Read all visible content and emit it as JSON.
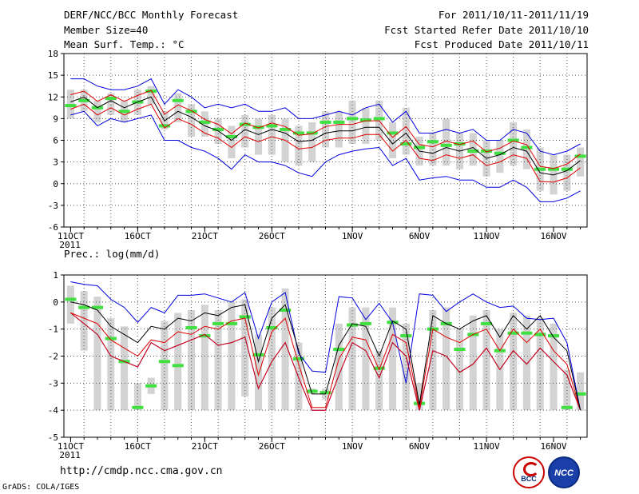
{
  "header": {
    "title": "DERF/NCC/BCC Monthly Forecast",
    "member_size": "Member Size=40",
    "variable": "Mean Surf. Temp.: °C",
    "period": "For 2011/10/11-2011/11/19",
    "refer_date": "Fcst Started Refer Date 2011/10/10",
    "produced_date": "Fcst Produced Date 2011/10/11"
  },
  "footer": {
    "url": "http://cmdp.ncc.cma.gov.cn",
    "credit": "GrADS: COLA/IGES",
    "logo_bcc": "BCC",
    "logo_ncc": "NCC"
  },
  "colors": {
    "ensemble_box": "#d3d3d3",
    "median_bar": "#40e040",
    "mean_line": "#000000",
    "inner_bound": "#e00000",
    "outer_bound": "#0000e0",
    "background": "#ffffff"
  },
  "chart_data": [
    {
      "type": "box-ensemble-line",
      "title": "Mean Surf. Temp.: °C",
      "ylabel": "°C",
      "ylim": [
        -6,
        18
      ],
      "yticks": [
        -6,
        -3,
        0,
        3,
        6,
        9,
        12,
        15,
        18
      ],
      "xlim": [
        0.5,
        39.5
      ],
      "xticks": [
        {
          "day": 1,
          "label": "11OCT"
        },
        {
          "day": 6,
          "label": "16OCT"
        },
        {
          "day": 11,
          "label": "21OCT"
        },
        {
          "day": 16,
          "label": "26OCT"
        },
        {
          "day": 22,
          "label": "1NOV"
        },
        {
          "day": 27,
          "label": "6NOV"
        },
        {
          "day": 32,
          "label": "11NOV"
        },
        {
          "day": 37,
          "label": "16NOV"
        }
      ],
      "year_label": "2011",
      "grid": true,
      "days": [
        1,
        2,
        3,
        4,
        5,
        6,
        7,
        8,
        9,
        10,
        11,
        12,
        13,
        14,
        15,
        16,
        17,
        18,
        19,
        20,
        21,
        22,
        23,
        24,
        25,
        26,
        27,
        28,
        29,
        30,
        31,
        32,
        33,
        34,
        35,
        36,
        37,
        38,
        39
      ],
      "ensemble_mean": [
        11.3,
        12.0,
        10.5,
        11.5,
        10.5,
        11.3,
        12.0,
        8.7,
        10.0,
        9.2,
        8.0,
        7.3,
        6.0,
        7.5,
        6.8,
        7.5,
        7.0,
        5.8,
        6.0,
        7.0,
        7.3,
        7.3,
        7.8,
        7.8,
        5.5,
        7.0,
        4.5,
        4.2,
        5.0,
        4.5,
        5.0,
        3.5,
        4.0,
        5.0,
        4.5,
        1.5,
        1.2,
        1.8,
        3.2
      ],
      "inner_upper": [
        12.3,
        12.8,
        11.4,
        12.3,
        11.4,
        12.2,
        12.9,
        9.6,
        10.9,
        10.1,
        8.9,
        8.2,
        6.9,
        8.4,
        7.7,
        8.4,
        7.9,
        6.7,
        6.9,
        7.9,
        8.2,
        8.2,
        8.7,
        8.7,
        6.4,
        7.9,
        5.4,
        5.1,
        5.9,
        5.4,
        5.9,
        4.4,
        4.9,
        5.9,
        5.4,
        2.4,
        2.1,
        2.7,
        4.1
      ],
      "inner_lower": [
        10.3,
        11.0,
        9.5,
        10.5,
        9.5,
        10.3,
        11.0,
        7.7,
        9.0,
        8.2,
        7.0,
        6.3,
        5.0,
        6.5,
        5.8,
        6.5,
        6.0,
        4.8,
        5.0,
        6.0,
        6.3,
        6.3,
        6.8,
        6.8,
        4.5,
        6.0,
        3.5,
        3.2,
        4.0,
        3.5,
        4.0,
        2.5,
        3.0,
        4.0,
        3.5,
        0.3,
        0.2,
        0.8,
        2.2
      ],
      "outer_upper": [
        14.5,
        14.5,
        13.5,
        13.0,
        13.0,
        13.5,
        14.5,
        11.0,
        13.0,
        12.0,
        10.5,
        11.0,
        10.5,
        11.0,
        10.0,
        10.0,
        10.5,
        9.0,
        9.0,
        9.5,
        10.0,
        9.5,
        10.5,
        11.0,
        8.5,
        10.0,
        7.0,
        7.0,
        7.5,
        7.0,
        7.5,
        6.0,
        6.0,
        7.5,
        7.0,
        4.5,
        4.0,
        4.5,
        5.5
      ],
      "outer_lower": [
        9.5,
        10.0,
        8.0,
        9.0,
        8.5,
        9.0,
        9.5,
        6.0,
        6.0,
        5.0,
        4.5,
        3.5,
        2.0,
        4.0,
        3.0,
        3.0,
        2.5,
        1.5,
        1.0,
        3.0,
        4.0,
        4.5,
        4.8,
        5.0,
        2.5,
        3.5,
        0.5,
        0.8,
        1.0,
        0.5,
        0.5,
        -0.5,
        -0.5,
        0.5,
        -0.5,
        -2.5,
        -2.5,
        -2.0,
        -1.0
      ],
      "median": [
        10.8,
        11.5,
        10.5,
        11.8,
        10.0,
        11.3,
        12.8,
        8.0,
        11.5,
        10.0,
        8.5,
        7.5,
        6.5,
        8.2,
        7.8,
        8.0,
        7.5,
        7.0,
        7.0,
        8.5,
        8.5,
        9.0,
        8.8,
        9.0,
        7.0,
        5.5,
        5.0,
        5.8,
        5.3,
        5.5,
        4.5,
        4.5,
        4.2,
        6.0,
        5.0,
        2.0,
        2.0,
        2.0,
        3.8
      ],
      "box_upper": [
        13.0,
        13.0,
        11.5,
        12.5,
        11.5,
        13.0,
        13.5,
        10.0,
        12.5,
        11.0,
        10.0,
        9.0,
        8.0,
        9.5,
        9.0,
        9.5,
        9.0,
        8.0,
        8.5,
        10.0,
        10.0,
        11.5,
        10.5,
        11.5,
        8.5,
        10.5,
        6.5,
        7.0,
        9.0,
        7.0,
        7.0,
        6.0,
        6.0,
        8.5,
        7.5,
        5.0,
        4.0,
        4.0,
        5.0
      ],
      "box_lower": [
        9.0,
        10.0,
        8.5,
        9.5,
        8.5,
        9.5,
        11.0,
        7.5,
        8.5,
        6.5,
        6.5,
        5.5,
        3.5,
        5.0,
        4.0,
        4.0,
        3.0,
        2.5,
        3.0,
        5.0,
        5.0,
        5.5,
        5.5,
        6.0,
        3.5,
        4.0,
        2.5,
        2.5,
        2.5,
        2.0,
        2.5,
        1.0,
        1.5,
        2.5,
        2.0,
        -1.0,
        -1.5,
        -1.0,
        1.0
      ]
    },
    {
      "type": "box-ensemble-line",
      "title": "Prec.: log(mm/d)",
      "ylabel": "log(mm/d)",
      "ylim": [
        -5,
        1
      ],
      "yticks": [
        -5,
        -4,
        -3,
        -2,
        -1,
        0,
        1
      ],
      "xlim": [
        0.5,
        39.5
      ],
      "xticks": [
        {
          "day": 1,
          "label": "11OCT"
        },
        {
          "day": 6,
          "label": "16OCT"
        },
        {
          "day": 11,
          "label": "21OCT"
        },
        {
          "day": 16,
          "label": "26OCT"
        },
        {
          "day": 22,
          "label": "1NOV"
        },
        {
          "day": 27,
          "label": "6NOV"
        },
        {
          "day": 32,
          "label": "11NOV"
        },
        {
          "day": 37,
          "label": "16NOV"
        }
      ],
      "year_label": "2011",
      "grid": true,
      "days": [
        1,
        2,
        3,
        4,
        5,
        6,
        7,
        8,
        9,
        10,
        11,
        12,
        13,
        14,
        15,
        16,
        17,
        18,
        19,
        20,
        21,
        22,
        23,
        24,
        25,
        26,
        27,
        28,
        29,
        30,
        31,
        32,
        33,
        34,
        35,
        36,
        37,
        38,
        39
      ],
      "ensemble_mean": [
        0.0,
        -0.1,
        -0.3,
        -0.9,
        -1.2,
        -1.5,
        -0.9,
        -1.0,
        -0.6,
        -0.7,
        -0.4,
        -0.5,
        -0.2,
        -0.1,
        -2.2,
        -0.6,
        -0.1,
        -1.8,
        -3.4,
        -3.4,
        -1.6,
        -0.8,
        -0.9,
        -2.0,
        -0.7,
        -1.0,
        -3.8,
        -0.5,
        -0.8,
        -1.0,
        -0.7,
        -0.5,
        -1.3,
        -0.5,
        -1.0,
        -0.5,
        -1.3,
        -1.8,
        -4.0
      ],
      "inner_upper": [
        -0.4,
        -0.6,
        -0.8,
        -1.4,
        -1.7,
        -2.0,
        -1.4,
        -1.5,
        -1.1,
        -1.2,
        -0.9,
        -1.0,
        -0.7,
        -0.6,
        -2.7,
        -1.1,
        -0.6,
        -2.3,
        -3.9,
        -3.9,
        -2.1,
        -1.3,
        -1.4,
        -2.5,
        -1.2,
        -1.5,
        -3.9,
        -1.0,
        -1.3,
        -1.5,
        -1.2,
        -1.0,
        -1.8,
        -1.0,
        -1.5,
        -1.0,
        -1.8,
        -2.3,
        -4.0
      ],
      "inner_lower": [
        -0.4,
        -0.8,
        -1.2,
        -2.0,
        -2.2,
        -2.4,
        -1.5,
        -1.8,
        -1.6,
        -1.4,
        -1.2,
        -1.6,
        -1.5,
        -1.3,
        -3.2,
        -2.2,
        -1.5,
        -2.8,
        -4.0,
        -4.0,
        -2.7,
        -1.5,
        -1.8,
        -2.8,
        -1.5,
        -2.0,
        -4.0,
        -1.8,
        -2.0,
        -2.6,
        -2.3,
        -1.7,
        -2.5,
        -1.8,
        -2.3,
        -1.7,
        -2.2,
        -2.7,
        -4.0
      ],
      "outer_upper": [
        0.75,
        0.65,
        0.6,
        0.1,
        -0.2,
        -0.75,
        -0.2,
        -0.4,
        0.25,
        0.25,
        0.3,
        0.15,
        0.0,
        0.35,
        -1.35,
        0.0,
        0.35,
        -1.9,
        -2.55,
        -2.6,
        0.2,
        0.15,
        -0.65,
        -0.05,
        -0.75,
        -3.0,
        0.3,
        0.25,
        -0.35,
        0.0,
        0.3,
        0.0,
        -0.2,
        -0.15,
        -0.6,
        -0.65,
        -0.6,
        -1.5,
        -4.0
      ],
      "outer_lower": [
        -0.4,
        -0.8,
        -1.2,
        -2.0,
        -2.2,
        -2.4,
        -1.5,
        -1.8,
        -1.6,
        -1.4,
        -1.2,
        -1.6,
        -1.5,
        -1.3,
        -3.2,
        -2.2,
        -1.5,
        -2.8,
        -4.0,
        -4.0,
        -2.7,
        -1.5,
        -1.8,
        -2.8,
        -1.5,
        -2.0,
        -4.0,
        -1.8,
        -2.0,
        -2.6,
        -2.3,
        -1.7,
        -2.5,
        -1.8,
        -2.3,
        -1.7,
        -2.2,
        -2.7,
        -4.0
      ],
      "median": [
        0.1,
        -0.2,
        -0.2,
        -1.35,
        -2.2,
        -3.9,
        -3.1,
        -2.2,
        -2.35,
        -0.95,
        -1.25,
        -0.8,
        -0.8,
        -0.55,
        -1.95,
        -0.95,
        -0.3,
        -2.1,
        -3.3,
        -3.35,
        -1.75,
        -0.85,
        -0.8,
        -2.45,
        -0.75,
        -1.25,
        -3.75,
        -1.0,
        -0.8,
        -1.75,
        -1.2,
        -0.8,
        -1.8,
        -1.15,
        -1.15,
        -1.2,
        -1.25,
        -3.9,
        -3.4
      ],
      "box_upper": [
        0.6,
        0.4,
        0.2,
        -0.6,
        -0.9,
        -3.0,
        -2.8,
        -0.7,
        -0.4,
        -0.3,
        -0.1,
        -0.3,
        0.0,
        0.1,
        -1.2,
        -0.2,
        0.5,
        -1.5,
        -3.2,
        -3.2,
        -0.8,
        -0.2,
        -0.2,
        -1.8,
        -0.2,
        -0.8,
        -3.0,
        -0.3,
        -0.2,
        -1.0,
        -0.5,
        -0.3,
        -1.0,
        -0.4,
        -0.5,
        -0.6,
        -0.8,
        -2.5,
        -2.6
      ],
      "box_lower": [
        -0.8,
        -1.8,
        -4.0,
        -4.0,
        -4.0,
        -4.0,
        -3.4,
        -4.0,
        -4.0,
        -4.0,
        -4.0,
        -4.0,
        -4.0,
        -3.5,
        -4.0,
        -4.0,
        -4.0,
        -4.0,
        -3.4,
        -3.6,
        -4.0,
        -4.0,
        -4.0,
        -4.0,
        -4.0,
        -4.0,
        -4.0,
        -4.0,
        -4.0,
        -4.0,
        -4.0,
        -4.0,
        -4.0,
        -4.0,
        -4.0,
        -4.0,
        -4.0,
        -4.0,
        -4.0
      ]
    }
  ]
}
